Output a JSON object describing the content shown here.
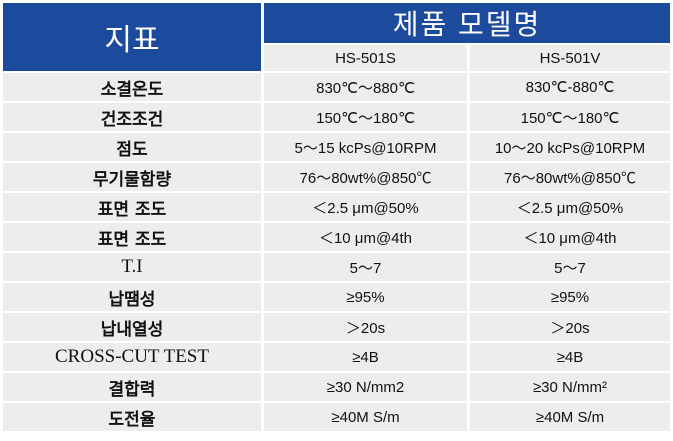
{
  "header": {
    "indicator_label": "지표",
    "product_model_label": "제품 모델명",
    "models": [
      "HS-501S",
      "HS-501V"
    ]
  },
  "colors": {
    "header_bg": "#1c4a9c",
    "cell_bg": "#ededed"
  },
  "rows": [
    {
      "label": "소결온도",
      "v1": "830℃～880℃",
      "v2": "830℃-880℃"
    },
    {
      "label": "건조조건",
      "v1": "150℃～180℃",
      "v2": "150℃～180℃"
    },
    {
      "label": "점도",
      "v1": "5～15 kcPs@10RPM",
      "v2": "10～20 kcPs@10RPM"
    },
    {
      "label": "무기물함량",
      "v1": "76～80wt%@850℃",
      "v2": "76～80wt%@850℃"
    },
    {
      "label": "표면 조도",
      "v1": "＜2.5 μm@50%",
      "v2": "＜2.5 μm@50%"
    },
    {
      "label": "표면 조도",
      "v1": "＜10 μm@4th",
      "v2": "＜10 μm@4th"
    },
    {
      "label": "T.I",
      "v1": "5～7",
      "v2": "5～7"
    },
    {
      "label": "납땜성",
      "v1": "≥95%",
      "v2": "≥95%"
    },
    {
      "label": "납내열성",
      "v1": "＞20s",
      "v2": "＞20s"
    },
    {
      "label": "CROSS-CUT TEST",
      "v1": "≥4B",
      "v2": "≥4B"
    },
    {
      "label": "결합력",
      "v1": "≥30 N/mm2",
      "v2": "≥30 N/mm²"
    },
    {
      "label": "도전율",
      "v1": "≥40M S/m",
      "v2": "≥40M S/m"
    }
  ]
}
